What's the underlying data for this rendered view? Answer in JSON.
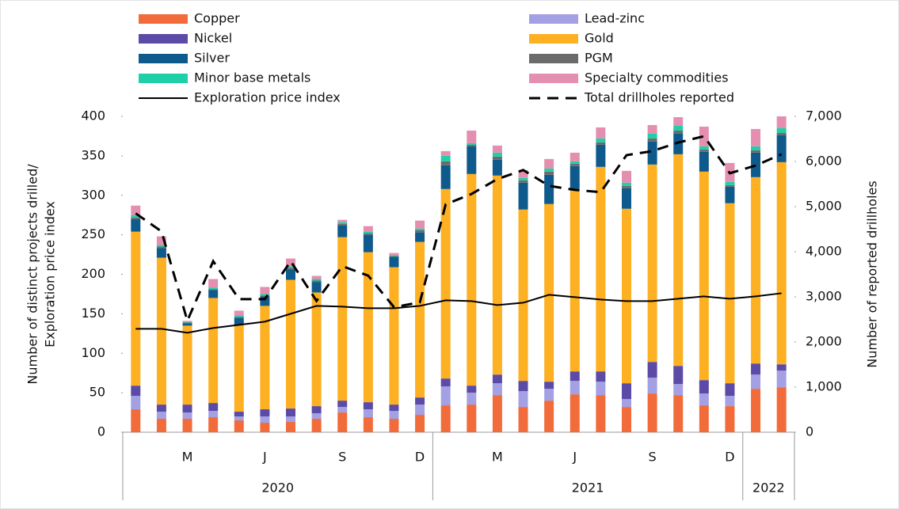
{
  "chart_data": {
    "type": "bar",
    "ylabel": [
      "Number of distinct projects drilled/",
      "Exploration price index"
    ],
    "y2label": "Number of reported drillholes",
    "ylim": [
      0,
      400
    ],
    "yticks": [
      0,
      50,
      100,
      150,
      200,
      250,
      300,
      350,
      400
    ],
    "y2lim": [
      0,
      7000
    ],
    "y2ticks": [
      0,
      {
        "value": 1000,
        "label": "1,000"
      },
      {
        "value": 2000,
        "label": "2,000"
      },
      {
        "value": 3000,
        "label": "3,000"
      },
      {
        "value": 4000,
        "label": "4,000"
      },
      {
        "value": 5000,
        "label": "5,000"
      },
      {
        "value": 6000,
        "label": "6,000"
      },
      {
        "value": 7000,
        "label": "7,000"
      }
    ],
    "groups": [
      {
        "label": "2020",
        "categories": [
          null,
          null,
          "M",
          null,
          null,
          "J",
          null,
          null,
          "S",
          null,
          null,
          "D"
        ]
      },
      {
        "label": "2021",
        "categories": [
          null,
          null,
          "M",
          null,
          null,
          "J",
          null,
          null,
          "S",
          null,
          null,
          "D"
        ]
      },
      {
        "label": "2022",
        "categories": [
          null,
          null
        ]
      }
    ],
    "series": [
      {
        "name": "Copper",
        "kind": "bar",
        "color": "#f26b3a",
        "values": [
          29,
          17,
          17,
          19,
          15,
          12,
          13,
          17,
          25,
          19,
          17,
          22,
          34,
          35,
          47,
          32,
          40,
          48,
          47,
          32,
          49,
          47,
          34,
          33,
          55,
          57
        ]
      },
      {
        "name": "Lead-zinc",
        "kind": "bar",
        "color": "#a3a0e3",
        "values": [
          17,
          9,
          8,
          8,
          5,
          8,
          7,
          7,
          7,
          10,
          10,
          13,
          24,
          15,
          15,
          20,
          15,
          17,
          17,
          10,
          20,
          14,
          15,
          13,
          18,
          21
        ]
      },
      {
        "name": "Nickel",
        "kind": "bar",
        "color": "#5b4aa6",
        "values": [
          13,
          9,
          10,
          10,
          6,
          9,
          10,
          9,
          8,
          9,
          8,
          9,
          10,
          9,
          11,
          13,
          9,
          12,
          13,
          20,
          20,
          23,
          17,
          16,
          14,
          8
        ]
      },
      {
        "name": "Gold",
        "kind": "bar",
        "color": "#fdb022",
        "values": [
          195,
          186,
          100,
          133,
          110,
          131,
          163,
          144,
          207,
          190,
          174,
          197,
          240,
          268,
          252,
          217,
          225,
          231,
          259,
          221,
          250,
          268,
          264,
          228,
          236,
          256
        ]
      },
      {
        "name": "Silver",
        "kind": "bar",
        "color": "#0f5a8c",
        "values": [
          16,
          12,
          3,
          10,
          9,
          12,
          13,
          13,
          15,
          22,
          13,
          12,
          30,
          35,
          20,
          34,
          37,
          29,
          28,
          26,
          29,
          26,
          25,
          21,
          31,
          34
        ]
      },
      {
        "name": "PGM",
        "kind": "bar",
        "color": "#6b6b6b",
        "values": [
          2,
          2,
          1,
          1,
          1,
          1,
          2,
          2,
          2,
          2,
          1,
          3,
          5,
          2,
          4,
          3,
          4,
          3,
          3,
          3,
          4,
          4,
          3,
          2,
          3,
          3
        ]
      },
      {
        "name": "Minor base metals",
        "kind": "bar",
        "color": "#1fcfa8",
        "values": [
          3,
          2,
          1,
          2,
          2,
          2,
          2,
          2,
          2,
          2,
          1,
          2,
          7,
          2,
          5,
          3,
          4,
          3,
          5,
          4,
          6,
          6,
          4,
          4,
          5,
          6
        ]
      },
      {
        "name": "Specialty commodities",
        "kind": "bar",
        "color": "#e58fb0",
        "values": [
          12,
          11,
          1,
          11,
          6,
          9,
          10,
          4,
          3,
          7,
          3,
          10,
          6,
          16,
          9,
          10,
          12,
          11,
          14,
          15,
          11,
          11,
          25,
          24,
          22,
          15
        ]
      },
      {
        "name": "Exploration price index",
        "kind": "line",
        "color": "#000000",
        "dashed": false,
        "values": [
          131,
          131,
          126,
          132,
          136,
          140,
          150,
          160,
          159,
          157,
          157,
          160,
          167,
          166,
          161,
          164,
          174,
          171,
          168,
          166,
          166,
          169,
          172,
          169,
          172,
          176
        ]
      },
      {
        "name": "Total drillholes reported",
        "kind": "line",
        "color": "#000000",
        "dashed": true,
        "axis": "y2",
        "values": [
          4850,
          4450,
          2470,
          3790,
          2950,
          2950,
          3790,
          2910,
          3680,
          3470,
          2770,
          2880,
          5050,
          5280,
          5610,
          5810,
          5460,
          5370,
          5320,
          6140,
          6230,
          6420,
          6560,
          5740,
          5910,
          6160
        ]
      }
    ]
  }
}
